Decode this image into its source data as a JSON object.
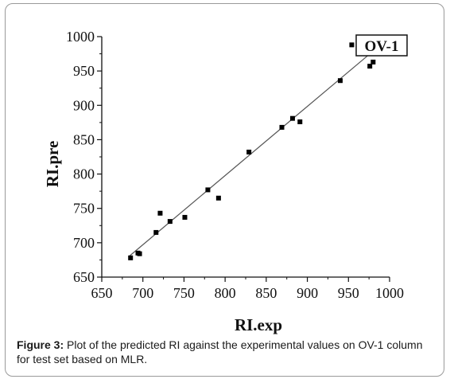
{
  "chart_data": {
    "type": "scatter",
    "annotation": "OV-1",
    "xlabel": "RI.exp",
    "ylabel": "RI.pre",
    "xlim": [
      650,
      1000
    ],
    "ylim": [
      650,
      1000
    ],
    "xticks": [
      650,
      700,
      750,
      800,
      850,
      900,
      950,
      1000
    ],
    "yticks": [
      650,
      700,
      750,
      800,
      850,
      900,
      950,
      1000
    ],
    "grid": false,
    "legend": "none",
    "marker_color": "#000000",
    "line_color": "#555555",
    "points": [
      {
        "x": 685,
        "y": 678
      },
      {
        "x": 694,
        "y": 685
      },
      {
        "x": 696,
        "y": 684
      },
      {
        "x": 716,
        "y": 715
      },
      {
        "x": 721,
        "y": 743
      },
      {
        "x": 733,
        "y": 731
      },
      {
        "x": 751,
        "y": 737
      },
      {
        "x": 779,
        "y": 777
      },
      {
        "x": 792,
        "y": 765
      },
      {
        "x": 829,
        "y": 832
      },
      {
        "x": 869,
        "y": 868
      },
      {
        "x": 882,
        "y": 881
      },
      {
        "x": 891,
        "y": 876
      },
      {
        "x": 940,
        "y": 936
      },
      {
        "x": 954,
        "y": 988
      },
      {
        "x": 976,
        "y": 957
      },
      {
        "x": 980,
        "y": 963
      }
    ],
    "fit_line": {
      "x": [
        683,
        984
      ],
      "y": [
        680,
        983
      ]
    }
  },
  "caption": {
    "label": "Figure 3:",
    "text": " Plot of the predicted RI against the experimental values on OV-1 column for test set based on MLR."
  }
}
